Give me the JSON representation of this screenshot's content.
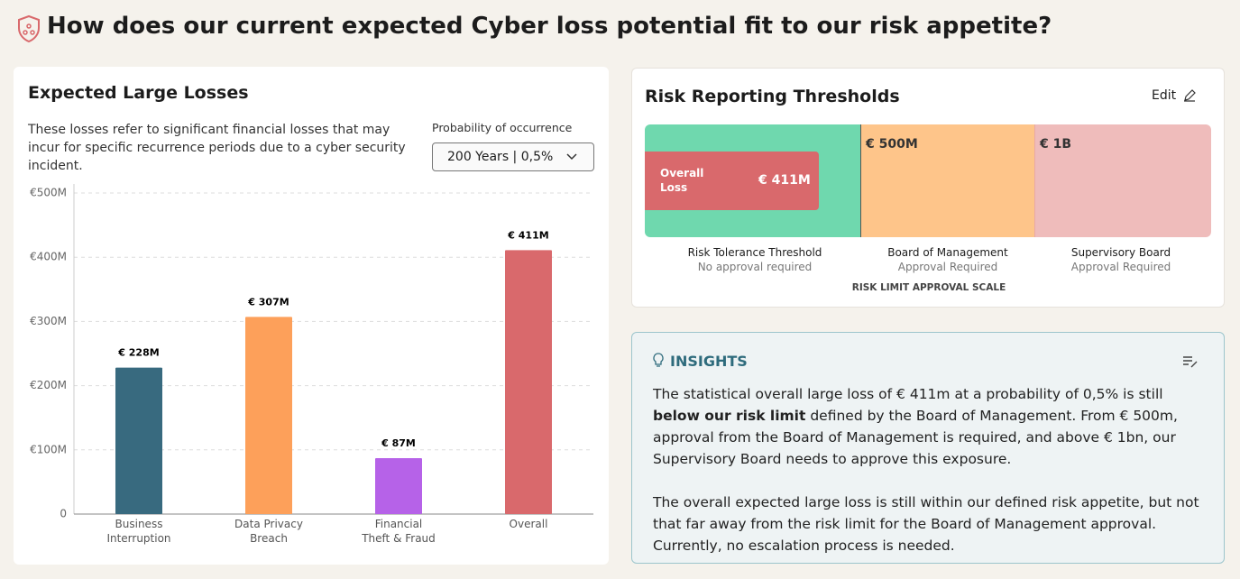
{
  "header": {
    "title": "How does our current expected Cyber loss potential fit to our risk appetite?"
  },
  "losses_card": {
    "title": "Expected Large Losses",
    "description": "These losses refer to significant financial losses that may incur for specific recurrence periods due to a cyber security incident.",
    "dropdown_label": "Probability of occurrence",
    "dropdown_value": "200 Years | 0,5%"
  },
  "chart_data": {
    "type": "bar",
    "categories": [
      "Business Interruption",
      "Data Privacy Breach",
      "Financial Theft & Fraud",
      "Overall"
    ],
    "values": [
      228,
      307,
      87,
      411
    ],
    "value_labels": [
      "€ 228M",
      "€ 307M",
      "€ 87M",
      "€ 411M"
    ],
    "colors": [
      "#386a7f",
      "#fda05a",
      "#b662e8",
      "#d9696c"
    ],
    "ylim": [
      0,
      500
    ],
    "yticks": [
      0,
      {
        "value": 100,
        "label": "€100M"
      },
      {
        "value": 200,
        "label": "€200M"
      },
      {
        "value": 300,
        "label": "€300M"
      },
      {
        "value": 400,
        "label": "€400M"
      },
      {
        "value": 500,
        "label": "€500M"
      }
    ],
    "grid": true
  },
  "thresholds": {
    "title": "Risk Reporting Thresholds",
    "edit": "Edit",
    "overall_label": "Overall Loss",
    "overall_value": "€ 411M",
    "limits": [
      "€ 500M",
      "€ 1B"
    ],
    "segments": [
      {
        "name": "Risk Tolerance Threshold",
        "note": "No approval required"
      },
      {
        "name": "Board of Management",
        "note": "Approval Required"
      },
      {
        "name": "Supervisory Board",
        "note": "Approval Required"
      }
    ],
    "scale_label": "RISK LIMIT APPROVAL SCALE"
  },
  "insights": {
    "title": "INSIGHTS",
    "paragraph1": [
      "The statistical overall large loss of € 411m at a probability of 0,5% is still ",
      "below our risk limit",
      " defined by the Board of Management. From € 500m, approval from the Board of Management is required, and above € 1bn, our Supervisory Board needs to approve this exposure."
    ],
    "paragraph2": "The overall expected large loss is still within our defined risk appetite, but not that far away from the risk limit for the Board of Management approval. Currently, no escalation process is needed."
  }
}
